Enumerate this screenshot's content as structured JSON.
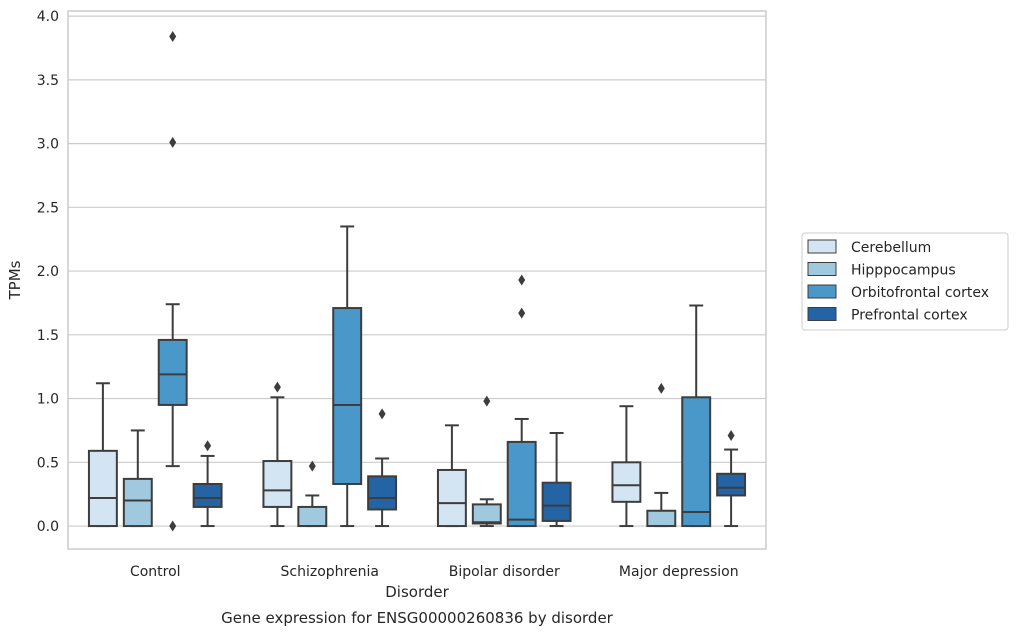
{
  "chart_data": {
    "type": "box",
    "xlabel": "Disorder",
    "ylabel": "TPMs",
    "caption": "Gene expression for ENSG00000260836 by disorder",
    "ylim": [
      -0.18,
      4.04
    ],
    "yticks": [
      "0.0",
      "0.5",
      "1.0",
      "1.5",
      "2.0",
      "2.5",
      "3.0",
      "3.5",
      "4.0"
    ],
    "grid": "horizontal",
    "legend_position": "right",
    "categories": [
      "Control",
      "Schizophrenia",
      "Bipolar disorder",
      "Major depression"
    ],
    "series": [
      {
        "name": "Cerebellum",
        "color": "#d3e4f3",
        "boxes": [
          {
            "whislo": 0.0,
            "q1": 0.0,
            "med": 0.22,
            "q3": 0.59,
            "whishi": 1.12,
            "fliers": []
          },
          {
            "whislo": 0.0,
            "q1": 0.15,
            "med": 0.28,
            "q3": 0.51,
            "whishi": 1.01,
            "fliers": [
              1.09
            ]
          },
          {
            "whislo": 0.0,
            "q1": 0.0,
            "med": 0.18,
            "q3": 0.44,
            "whishi": 0.79,
            "fliers": []
          },
          {
            "whislo": 0.0,
            "q1": 0.19,
            "med": 0.32,
            "q3": 0.5,
            "whishi": 0.94,
            "fliers": []
          }
        ]
      },
      {
        "name": "Hipppocampus",
        "color": "#a0c9e0",
        "boxes": [
          {
            "whislo": 0.0,
            "q1": 0.0,
            "med": 0.2,
            "q3": 0.37,
            "whishi": 0.75,
            "fliers": []
          },
          {
            "whislo": 0.0,
            "q1": 0.0,
            "med": 0.0,
            "q3": 0.15,
            "whishi": 0.24,
            "fliers": [
              0.47
            ]
          },
          {
            "whislo": 0.0,
            "q1": 0.02,
            "med": 0.03,
            "q3": 0.17,
            "whishi": 0.21,
            "fliers": [
              0.98
            ]
          },
          {
            "whislo": 0.0,
            "q1": 0.0,
            "med": 0.0,
            "q3": 0.12,
            "whishi": 0.26,
            "fliers": [
              1.08
            ]
          }
        ]
      },
      {
        "name": "Orbitofrontal cortex",
        "color": "#4a98c9",
        "boxes": [
          {
            "whislo": 0.47,
            "q1": 0.95,
            "med": 1.19,
            "q3": 1.46,
            "whishi": 1.74,
            "fliers": [
              3.84,
              3.01,
              0.0
            ]
          },
          {
            "whislo": 0.0,
            "q1": 0.33,
            "med": 0.95,
            "q3": 1.71,
            "whishi": 2.35,
            "fliers": []
          },
          {
            "whislo": 0.0,
            "q1": 0.0,
            "med": 0.05,
            "q3": 0.66,
            "whishi": 0.84,
            "fliers": [
              1.93,
              1.67
            ]
          },
          {
            "whislo": 0.0,
            "q1": 0.0,
            "med": 0.11,
            "q3": 1.01,
            "whishi": 1.73,
            "fliers": []
          }
        ]
      },
      {
        "name": "Prefrontal cortex",
        "color": "#2464a4",
        "boxes": [
          {
            "whislo": 0.0,
            "q1": 0.15,
            "med": 0.22,
            "q3": 0.33,
            "whishi": 0.55,
            "fliers": [
              0.63
            ]
          },
          {
            "whislo": 0.0,
            "q1": 0.13,
            "med": 0.22,
            "q3": 0.39,
            "whishi": 0.53,
            "fliers": [
              0.88
            ]
          },
          {
            "whislo": 0.0,
            "q1": 0.04,
            "med": 0.16,
            "q3": 0.34,
            "whishi": 0.73,
            "fliers": []
          },
          {
            "whislo": 0.0,
            "q1": 0.24,
            "med": 0.3,
            "q3": 0.41,
            "whishi": 0.6,
            "fliers": [
              0.71
            ]
          }
        ]
      }
    ]
  }
}
